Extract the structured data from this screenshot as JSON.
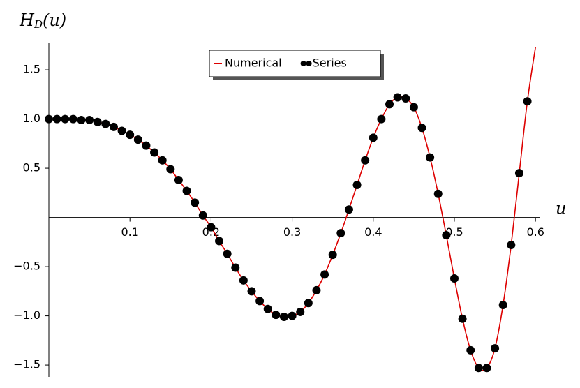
{
  "chart_data": {
    "type": "line+scatter",
    "y_label": "H",
    "y_label_sub": "D",
    "y_label_rest": "(u)",
    "x_label": "u",
    "xlim": [
      0,
      0.605
    ],
    "ylim": [
      -1.62,
      1.77
    ],
    "xticks": [
      0.1,
      0.2,
      0.3,
      0.4,
      0.5,
      0.6
    ],
    "yticks": [
      1.5,
      {
        "value": 1.0,
        "label": "1.0"
      },
      0.5,
      {
        "value": -0.5,
        "label": "−0.5"
      },
      {
        "value": -1.0,
        "label": "−1.0"
      },
      {
        "value": -1.5,
        "label": "−1.5"
      }
    ],
    "legend": "upper center",
    "series": [
      {
        "name": "Numerical",
        "color": "#dd0000",
        "kind": "line",
        "x": [
          0,
          0.01,
          0.02,
          0.03,
          0.04,
          0.05,
          0.06,
          0.07,
          0.08,
          0.09,
          0.1,
          0.11,
          0.12,
          0.13,
          0.14,
          0.15,
          0.16,
          0.17,
          0.18,
          0.19,
          0.2,
          0.21,
          0.22,
          0.23,
          0.24,
          0.25,
          0.26,
          0.27,
          0.28,
          0.29,
          0.3,
          0.31,
          0.32,
          0.33,
          0.34,
          0.35,
          0.36,
          0.37,
          0.38,
          0.39,
          0.4,
          0.41,
          0.42,
          0.43,
          0.44,
          0.45,
          0.46,
          0.47,
          0.48,
          0.49,
          0.5,
          0.51,
          0.52,
          0.53,
          0.54,
          0.55,
          0.56,
          0.57,
          0.58,
          0.59,
          0.6
        ],
        "values": [
          1.0,
          1.0,
          1.0,
          1.0,
          0.99,
          0.99,
          0.97,
          0.95,
          0.92,
          0.88,
          0.84,
          0.79,
          0.73,
          0.66,
          0.58,
          0.49,
          0.38,
          0.27,
          0.15,
          0.02,
          -0.1,
          -0.24,
          -0.37,
          -0.51,
          -0.64,
          -0.75,
          -0.85,
          -0.93,
          -0.99,
          -1.01,
          -1.0,
          -0.96,
          -0.87,
          -0.74,
          -0.58,
          -0.38,
          -0.16,
          0.08,
          0.33,
          0.58,
          0.81,
          1.0,
          1.15,
          1.22,
          1.21,
          1.12,
          0.91,
          0.61,
          0.24,
          -0.18,
          -0.62,
          -1.03,
          -1.35,
          -1.53,
          -1.53,
          -1.33,
          -0.89,
          -0.28,
          0.45,
          1.18,
          1.73
        ]
      },
      {
        "name": "Series",
        "color": "#000000",
        "kind": "scatter",
        "x": [
          0,
          0.01,
          0.02,
          0.03,
          0.04,
          0.05,
          0.06,
          0.07,
          0.08,
          0.09,
          0.1,
          0.11,
          0.12,
          0.13,
          0.14,
          0.15,
          0.16,
          0.17,
          0.18,
          0.19,
          0.2,
          0.21,
          0.22,
          0.23,
          0.24,
          0.25,
          0.26,
          0.27,
          0.28,
          0.29,
          0.3,
          0.31,
          0.32,
          0.33,
          0.34,
          0.35,
          0.36,
          0.37,
          0.38,
          0.39,
          0.4,
          0.41,
          0.42,
          0.43,
          0.44,
          0.45,
          0.46,
          0.47,
          0.48,
          0.49,
          0.5,
          0.51,
          0.52,
          0.53,
          0.54,
          0.55,
          0.56,
          0.57,
          0.58,
          0.59
        ],
        "values": [
          1.0,
          1.0,
          1.0,
          1.0,
          0.99,
          0.99,
          0.97,
          0.95,
          0.92,
          0.88,
          0.84,
          0.79,
          0.73,
          0.66,
          0.58,
          0.49,
          0.38,
          0.27,
          0.15,
          0.02,
          -0.1,
          -0.24,
          -0.37,
          -0.51,
          -0.64,
          -0.75,
          -0.85,
          -0.93,
          -0.99,
          -1.01,
          -1.0,
          -0.96,
          -0.87,
          -0.74,
          -0.58,
          -0.38,
          -0.16,
          0.08,
          0.33,
          0.58,
          0.81,
          1.0,
          1.15,
          1.22,
          1.21,
          1.12,
          0.91,
          0.61,
          0.24,
          -0.18,
          -0.62,
          -1.03,
          -1.35,
          -1.53,
          -1.53,
          -1.33,
          -0.89,
          -0.28,
          0.45,
          1.18
        ]
      }
    ]
  }
}
